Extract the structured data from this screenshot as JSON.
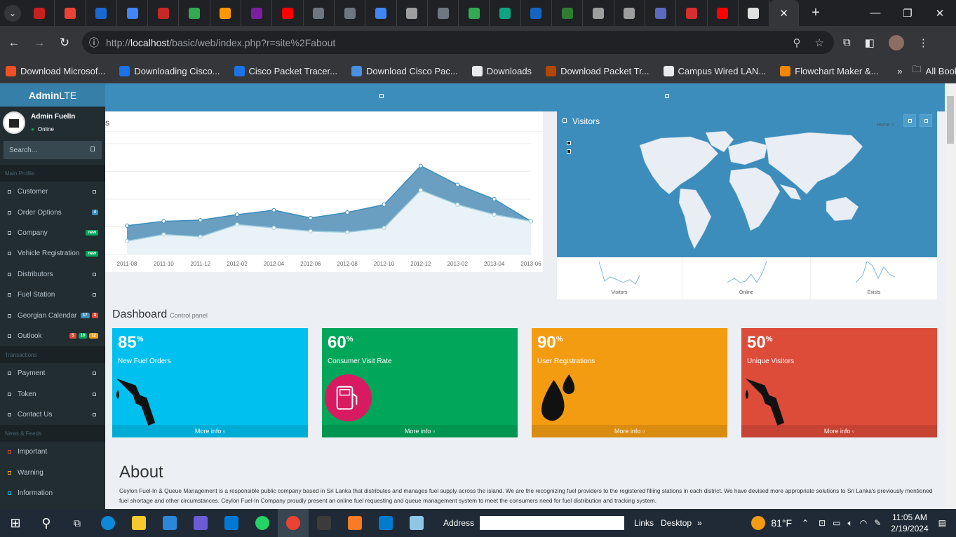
{
  "browser": {
    "url_prefix": "http://",
    "url_host": "localhost",
    "url_path": "/basic/web/index.php?r=site%2Fabout",
    "tab_count": 24
  },
  "bookmarks": [
    {
      "label": "Download Microsof...",
      "color": "#f25022"
    },
    {
      "label": "Downloading Cisco...",
      "color": "#1a73e8"
    },
    {
      "label": "Cisco Packet Tracer...",
      "color": "#1a73e8"
    },
    {
      "label": "Download Cisco Pac...",
      "color": "#4a90e2"
    },
    {
      "label": "Downloads",
      "color": "#e8eaed"
    },
    {
      "label": "Download Packet Tr...",
      "color": "#b34700"
    },
    {
      "label": "Campus Wired LAN...",
      "color": "#e8eaed"
    },
    {
      "label": "Flowchart Maker &...",
      "color": "#f08705"
    }
  ],
  "bookmarks_all": "All Bookmarks",
  "sidebar": {
    "logo_bold": "Admin",
    "logo_rest": "LTE",
    "user_name": "Admin FuelIn",
    "user_status": "Online",
    "search_placeholder": "Search...",
    "headers": [
      "Main Profile",
      "Transactions",
      "News & Feeds"
    ],
    "main_items": [
      {
        "label": "Customer"
      },
      {
        "label": "Order Options",
        "badges": [
          {
            "text": "4",
            "color": "#3c8dbc"
          }
        ]
      },
      {
        "label": "Company",
        "badges": [
          {
            "text": "new",
            "color": "#00a65a"
          }
        ]
      },
      {
        "label": "Vehicle Registration",
        "badges": [
          {
            "text": "new",
            "color": "#00a65a"
          }
        ]
      },
      {
        "label": "Distributors"
      },
      {
        "label": "Fuel Station"
      },
      {
        "label": "Georgian Calendar",
        "badges": [
          {
            "text": "17",
            "color": "#3c8dbc"
          },
          {
            "text": "3",
            "color": "#dd4b39"
          }
        ]
      },
      {
        "label": "Outlook",
        "badges": [
          {
            "text": "5",
            "color": "#dd4b39"
          },
          {
            "text": "16",
            "color": "#00a65a"
          },
          {
            "text": "12",
            "color": "#f39c12"
          }
        ]
      }
    ],
    "trans_items": [
      {
        "label": "Payment"
      },
      {
        "label": "Token"
      },
      {
        "label": "Contact Us"
      }
    ],
    "news_items": [
      {
        "label": "Important",
        "color": "#dd4b39"
      },
      {
        "label": "Warning",
        "color": "#f39c12"
      },
      {
        "label": "Information",
        "color": "#00c0ef"
      }
    ]
  },
  "chart": {
    "title_fragment": "s"
  },
  "chart_data": {
    "type": "area",
    "x": [
      "2011-08",
      "2011-10",
      "2011-12",
      "2012-02",
      "2012-04",
      "2012-06",
      "2012-08",
      "2012-10",
      "2012-12",
      "2013-02",
      "2013-04",
      "2013-06"
    ],
    "x_ticks": [
      "2011-08",
      "2011-10",
      "2011-12",
      "2012-02",
      "2012-04",
      "2012-06",
      "2012-08",
      "2012-10",
      "2012-12",
      "2013-02",
      "2013-04",
      "2013-06"
    ],
    "series": [
      {
        "values": [
          2.6,
          3.0,
          3.1,
          3.6,
          4.0,
          3.3,
          3.8,
          4.5,
          8.0,
          6.3,
          5.0,
          3.0
        ],
        "color": "#3c8dbc"
      },
      {
        "values": [
          1.2,
          1.8,
          1.6,
          2.7,
          2.4,
          2.1,
          2.0,
          2.4,
          5.8,
          4.5,
          3.6,
          3.0
        ],
        "color": "#a0d0e0"
      }
    ],
    "ylim": [
      0,
      10
    ],
    "grid": true
  },
  "visitors": {
    "title": "Visitors",
    "crumb": "Home >",
    "sparks": [
      "Visitors",
      "Online",
      "Exists"
    ]
  },
  "dashboard": {
    "title": "Dashboard",
    "subtitle": "Control panel"
  },
  "boxes": [
    {
      "value": "85",
      "unit": "%",
      "label": "New Fuel Orders",
      "footer": "More info",
      "color": "#00c0ef",
      "icon": "fuel-nozzle-icon"
    },
    {
      "value": "60",
      "unit": "%",
      "label": "Consumer Visit Rate",
      "footer": "More info",
      "color": "#00a65a",
      "icon": "fuel-pump-icon"
    },
    {
      "value": "90",
      "unit": "%",
      "label": "User Registrations",
      "footer": "More info",
      "color": "#f39c12",
      "icon": "oil-drops-icon"
    },
    {
      "value": "50",
      "unit": "%",
      "label": "Unique Visitors",
      "footer": "More info",
      "color": "#dd4b39",
      "icon": "fuel-nozzle-icon"
    }
  ],
  "about": {
    "title": "About",
    "text": "Ceylon Fuel-In & Queue Management is a responsible public company based in Sri Lanka that distributes and manages fuel supply across the island. We are the recognizing fuel providers to the registered filling stations in each district. We have devised more appropriate solutions to Sri Lanka's previously mentioned fuel shortage and other circumstances. Ceylon Fuel-In Company proudly present an online fuel requesting and queue management system to meet the consumers need for fuel distribution and tracking system."
  },
  "taskbar": {
    "address_label": "Address",
    "links": "Links",
    "desktop": "Desktop",
    "temp": "81°F",
    "time": "11:05 AM",
    "date": "2/19/2024"
  }
}
